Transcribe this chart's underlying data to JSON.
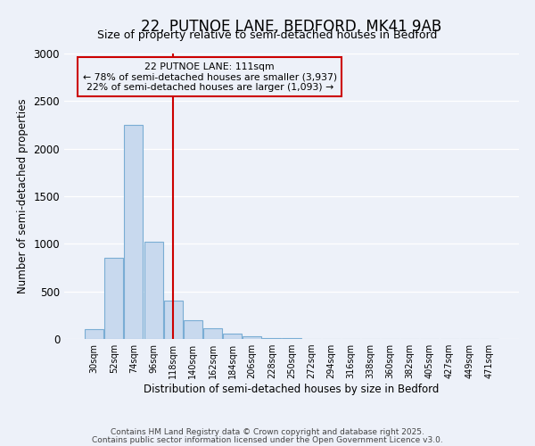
{
  "title": "22, PUTNOE LANE, BEDFORD, MK41 9AB",
  "subtitle": "Size of property relative to semi-detached houses in Bedford",
  "xlabel": "Distribution of semi-detached houses by size in Bedford",
  "ylabel": "Number of semi-detached properties",
  "bar_color": "#c8d9ee",
  "bar_edge_color": "#7aadd4",
  "bg_color": "#edf1f9",
  "grid_color": "#ffffff",
  "categories": [
    "30sqm",
    "52sqm",
    "74sqm",
    "96sqm",
    "118sqm",
    "140sqm",
    "162sqm",
    "184sqm",
    "206sqm",
    "228sqm",
    "250sqm",
    "272sqm",
    "294sqm",
    "316sqm",
    "338sqm",
    "360sqm",
    "382sqm",
    "405sqm",
    "427sqm",
    "449sqm",
    "471sqm"
  ],
  "values": [
    100,
    850,
    2250,
    1020,
    400,
    200,
    110,
    60,
    30,
    10,
    5,
    2,
    1,
    0,
    0,
    0,
    0,
    0,
    0,
    0,
    0
  ],
  "vline_index": 4,
  "vline_color": "#cc0000",
  "ann_line1": "22 PUTNOE LANE: 111sqm",
  "ann_line2": "← 78% of semi-detached houses are smaller (3,937)",
  "ann_line3": "22% of semi-detached houses are larger (1,093) →",
  "annotation_box_color": "#cc0000",
  "ylim": [
    0,
    3000
  ],
  "yticks": [
    0,
    500,
    1000,
    1500,
    2000,
    2500,
    3000
  ],
  "footer1": "Contains HM Land Registry data © Crown copyright and database right 2025.",
  "footer2": "Contains public sector information licensed under the Open Government Licence v3.0.",
  "title_fontsize": 12,
  "subtitle_fontsize": 9,
  "footer_fontsize": 6.5
}
